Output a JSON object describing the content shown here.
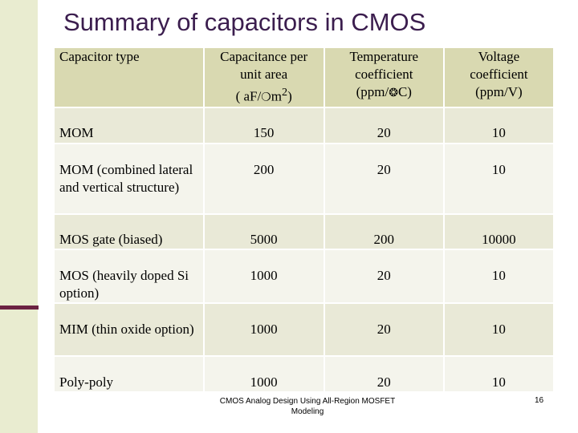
{
  "slide": {
    "title": "Summary of capacitors in CMOS",
    "footer": "CMOS Analog Design Using All-Region MOSFET Modeling",
    "page_number": "16"
  },
  "table": {
    "headers": {
      "type": "Capacitor type",
      "capacitance_line1": "Capacitance per",
      "capacitance_line2": "unit area",
      "capacitance_unit_a": "( aF/",
      "capacitance_unit_b": "m",
      "capacitance_unit_c": ")",
      "capacitance_sup": "2",
      "temperature_line1": "Temperature",
      "temperature_line2": "coefficient",
      "temperature_unit_a": "(ppm/",
      "temperature_unit_b": "C)",
      "voltage_line1": "Voltage",
      "voltage_line2": "coefficient",
      "voltage_unit": "(ppm/V)"
    },
    "rows": [
      {
        "type": "MOM",
        "capacitance": "150",
        "temperature": "20",
        "voltage": "10"
      },
      {
        "type": "MOM (combined lateral and vertical structure)",
        "capacitance": "200",
        "temperature": "20",
        "voltage": "10"
      },
      {
        "type": "MOS gate (biased)",
        "capacitance": "5000",
        "temperature": "200",
        "voltage": "10000"
      },
      {
        "type": "MOS (heavily doped Si option)",
        "capacitance": "1000",
        "temperature": "20",
        "voltage": "10"
      },
      {
        "type": "MIM (thin oxide option)",
        "capacitance": "1000",
        "temperature": "20",
        "voltage": "10"
      },
      {
        "type": "Poly-poly",
        "capacitance": "1000",
        "temperature": "20",
        "voltage": "10"
      }
    ]
  }
}
